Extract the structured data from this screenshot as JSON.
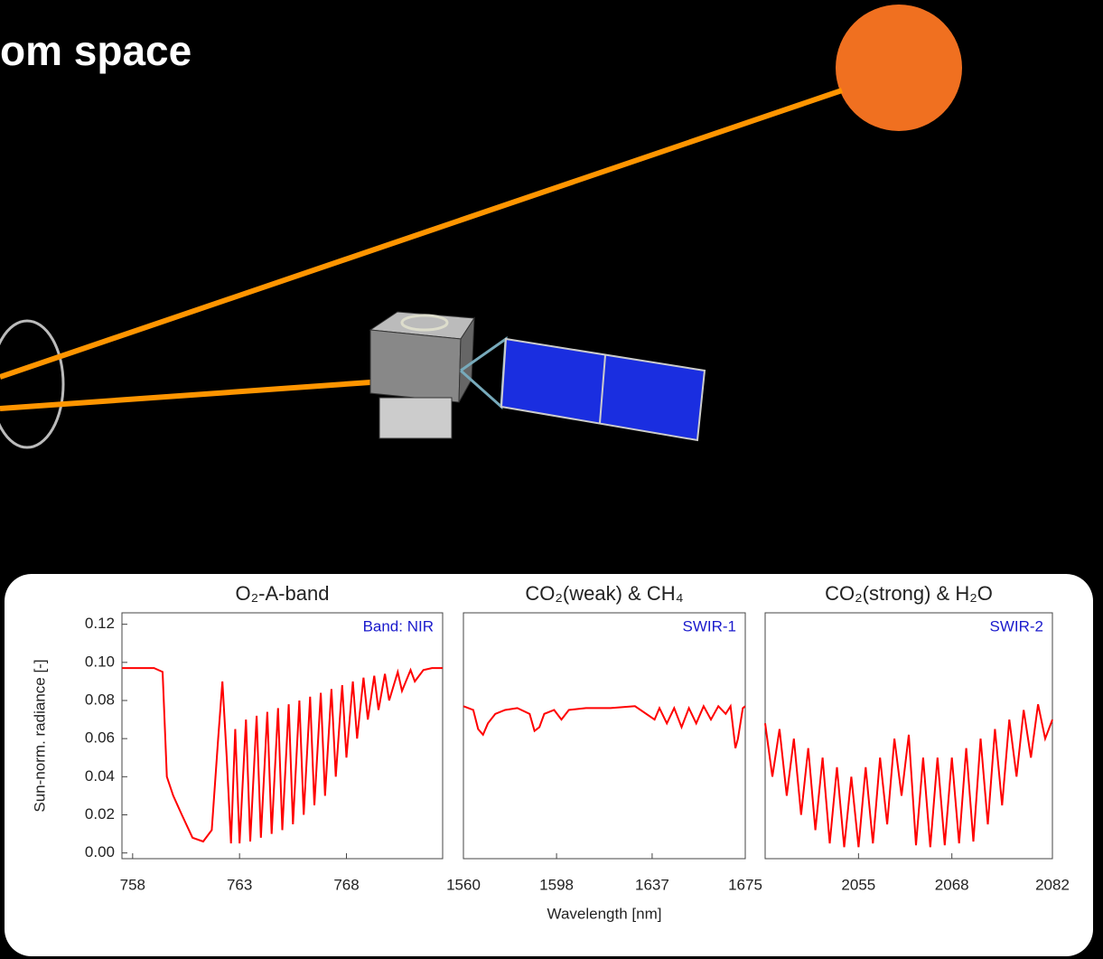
{
  "slide": {
    "title": "om space"
  },
  "chart_data": [
    {
      "type": "line",
      "title": "O₂-A-band",
      "annotation": "Band: NIR",
      "ylabel": "Sun-norm. radiance [-]",
      "xlim": [
        757.5,
        772.5
      ],
      "xticks": [
        758,
        763,
        768
      ],
      "ylim": [
        -0.003,
        0.126
      ],
      "yticks": [
        {
          "value": 0,
          "label": "0.00"
        },
        0.02,
        0.04,
        0.06,
        0.08,
        {
          "value": 0.1,
          "label": "0.10"
        },
        0.12
      ],
      "color": "#ff0000",
      "x": [
        757.5,
        759.0,
        759.4,
        759.6,
        759.9,
        760.3,
        760.8,
        761.3,
        761.7,
        762.0,
        762.2,
        762.4,
        762.6,
        762.8,
        763.0,
        763.3,
        763.5,
        763.8,
        764.0,
        764.3,
        764.5,
        764.8,
        765.0,
        765.3,
        765.5,
        765.8,
        766.0,
        766.3,
        766.5,
        766.8,
        767.0,
        767.3,
        767.5,
        767.8,
        768.0,
        768.3,
        768.5,
        768.8,
        769.0,
        769.3,
        769.5,
        769.8,
        770.0,
        770.4,
        770.6,
        771.0,
        771.2,
        771.6,
        772.0,
        772.5
      ],
      "values": [
        0.097,
        0.097,
        0.095,
        0.04,
        0.03,
        0.02,
        0.008,
        0.006,
        0.012,
        0.06,
        0.09,
        0.05,
        0.005,
        0.065,
        0.005,
        0.07,
        0.006,
        0.072,
        0.008,
        0.074,
        0.01,
        0.076,
        0.012,
        0.078,
        0.015,
        0.08,
        0.02,
        0.082,
        0.025,
        0.084,
        0.03,
        0.086,
        0.04,
        0.088,
        0.05,
        0.09,
        0.06,
        0.092,
        0.07,
        0.093,
        0.075,
        0.094,
        0.08,
        0.095,
        0.085,
        0.096,
        0.09,
        0.096,
        0.097,
        0.097
      ]
    },
    {
      "type": "line",
      "title": "CO₂(weak) & CH₄",
      "annotation": "SWIR-1",
      "xlabel": "Wavelength [nm]",
      "xlim": [
        1560,
        1675
      ],
      "xticks": [
        1560,
        1598,
        1637,
        1675
      ],
      "ylim": [
        -0.003,
        0.126
      ],
      "color": "#ff0000",
      "x": [
        1560,
        1564,
        1566,
        1568,
        1570,
        1573,
        1577,
        1582,
        1587,
        1589,
        1591,
        1593,
        1597,
        1600,
        1603,
        1610,
        1620,
        1630,
        1638,
        1640,
        1643,
        1646,
        1649,
        1652,
        1655,
        1658,
        1661,
        1664,
        1667,
        1669,
        1671,
        1672,
        1674,
        1675
      ],
      "values": [
        0.077,
        0.075,
        0.065,
        0.062,
        0.068,
        0.073,
        0.075,
        0.076,
        0.073,
        0.064,
        0.066,
        0.073,
        0.075,
        0.07,
        0.075,
        0.076,
        0.076,
        0.077,
        0.07,
        0.076,
        0.068,
        0.076,
        0.066,
        0.076,
        0.068,
        0.077,
        0.07,
        0.077,
        0.073,
        0.077,
        0.055,
        0.06,
        0.076,
        0.077
      ]
    },
    {
      "type": "line",
      "title": "CO₂(strong) & H₂O",
      "annotation": "SWIR-2",
      "xlim": [
        2042,
        2082
      ],
      "xticks": [
        2055,
        2068,
        2082
      ],
      "ylim": [
        -0.003,
        0.126
      ],
      "color": "#ff0000",
      "x": [
        2042,
        2043,
        2044,
        2045,
        2046,
        2047,
        2048,
        2049,
        2050,
        2051,
        2052,
        2053,
        2054,
        2055,
        2056,
        2057,
        2058,
        2059,
        2060,
        2061,
        2062,
        2063,
        2064,
        2065,
        2066,
        2067,
        2068,
        2069,
        2070,
        2071,
        2072,
        2073,
        2074,
        2075,
        2076,
        2077,
        2078,
        2079,
        2080,
        2081,
        2082
      ],
      "values": [
        0.068,
        0.04,
        0.065,
        0.03,
        0.06,
        0.02,
        0.055,
        0.012,
        0.05,
        0.005,
        0.045,
        0.003,
        0.04,
        0.003,
        0.045,
        0.005,
        0.05,
        0.015,
        0.06,
        0.03,
        0.062,
        0.004,
        0.05,
        0.003,
        0.05,
        0.004,
        0.05,
        0.005,
        0.055,
        0.006,
        0.06,
        0.015,
        0.065,
        0.025,
        0.07,
        0.04,
        0.075,
        0.05,
        0.078,
        0.06,
        0.07
      ]
    }
  ]
}
